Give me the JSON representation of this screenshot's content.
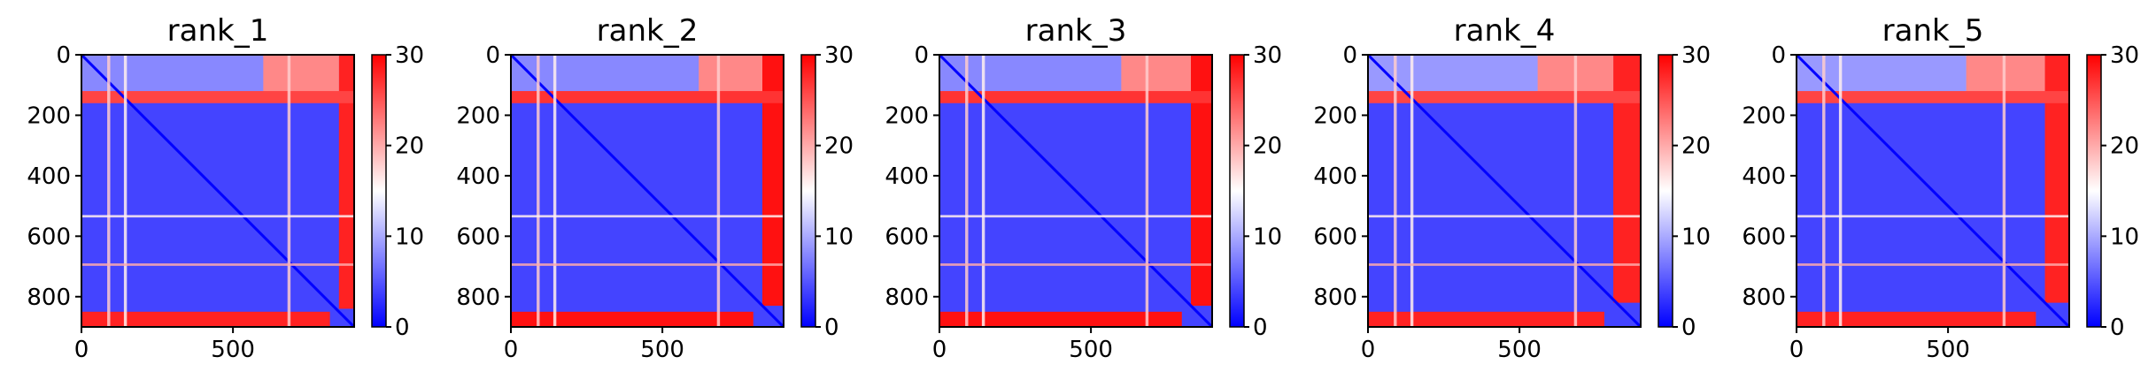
{
  "chart_data": [
    {
      "type": "heatmap",
      "title": "rank_1",
      "x_ticks": [
        "0",
        "500"
      ],
      "y_ticks": [
        "0",
        "200",
        "400",
        "600",
        "800"
      ],
      "colorbar_ticks": [
        "0",
        "10",
        "20",
        "30"
      ],
      "colormap": "bwr",
      "color_range": [
        0,
        30
      ],
      "x_range": [
        0,
        900
      ],
      "y_range": [
        900,
        0
      ],
      "blocks": [
        {
          "x0": 0,
          "x1": 850,
          "y0": 150,
          "y1": 850,
          "value": 4
        },
        {
          "x0": 0,
          "x1": 850,
          "y0": 0,
          "y1": 150,
          "value": 8
        },
        {
          "x0": 600,
          "x1": 850,
          "y0": 0,
          "y1": 150,
          "value": 22
        },
        {
          "x0": 850,
          "x1": 900,
          "y0": 0,
          "y1": 900,
          "value": 28
        },
        {
          "x0": 0,
          "x1": 900,
          "y0": 850,
          "y1": 900,
          "value": 28
        },
        {
          "x0": 0,
          "x1": 900,
          "y0": 120,
          "y1": 160,
          "value": 26
        },
        {
          "x0": 820,
          "x1": 900,
          "y0": 840,
          "y1": 900,
          "value": 4
        }
      ],
      "bands": [
        {
          "orient": "v",
          "pos": 85,
          "width": 10,
          "value": 18
        },
        {
          "orient": "v",
          "pos": 140,
          "width": 10,
          "value": 16
        },
        {
          "orient": "v",
          "pos": 680,
          "width": 10,
          "value": 18
        },
        {
          "orient": "h",
          "pos": 530,
          "width": 8,
          "value": 16
        },
        {
          "orient": "h",
          "pos": 690,
          "width": 8,
          "value": 20
        }
      ]
    },
    {
      "type": "heatmap",
      "title": "rank_2",
      "x_ticks": [
        "0",
        "500"
      ],
      "y_ticks": [
        "0",
        "200",
        "400",
        "600",
        "800"
      ],
      "colorbar_ticks": [
        "0",
        "10",
        "20",
        "30"
      ],
      "colormap": "bwr",
      "color_range": [
        0,
        30
      ],
      "x_range": [
        0,
        900
      ],
      "y_range": [
        900,
        0
      ],
      "blocks": [
        {
          "x0": 0,
          "x1": 830,
          "y0": 150,
          "y1": 850,
          "value": 4
        },
        {
          "x0": 0,
          "x1": 830,
          "y0": 0,
          "y1": 150,
          "value": 8
        },
        {
          "x0": 620,
          "x1": 830,
          "y0": 0,
          "y1": 150,
          "value": 22
        },
        {
          "x0": 830,
          "x1": 900,
          "y0": 0,
          "y1": 900,
          "value": 29
        },
        {
          "x0": 0,
          "x1": 900,
          "y0": 850,
          "y1": 900,
          "value": 29
        },
        {
          "x0": 0,
          "x1": 900,
          "y0": 120,
          "y1": 160,
          "value": 27
        },
        {
          "x0": 800,
          "x1": 900,
          "y0": 830,
          "y1": 900,
          "value": 4
        }
      ],
      "bands": [
        {
          "orient": "v",
          "pos": 85,
          "width": 10,
          "value": 18
        },
        {
          "orient": "v",
          "pos": 140,
          "width": 10,
          "value": 16
        },
        {
          "orient": "v",
          "pos": 680,
          "width": 10,
          "value": 18
        },
        {
          "orient": "h",
          "pos": 530,
          "width": 8,
          "value": 16
        },
        {
          "orient": "h",
          "pos": 690,
          "width": 8,
          "value": 20
        }
      ]
    },
    {
      "type": "heatmap",
      "title": "rank_3",
      "x_ticks": [
        "0",
        "500"
      ],
      "y_ticks": [
        "0",
        "200",
        "400",
        "600",
        "800"
      ],
      "colorbar_ticks": [
        "0",
        "10",
        "20",
        "30"
      ],
      "colormap": "bwr",
      "color_range": [
        0,
        30
      ],
      "x_range": [
        0,
        900
      ],
      "y_range": [
        900,
        0
      ],
      "blocks": [
        {
          "x0": 0,
          "x1": 830,
          "y0": 150,
          "y1": 850,
          "value": 4
        },
        {
          "x0": 0,
          "x1": 830,
          "y0": 0,
          "y1": 150,
          "value": 8
        },
        {
          "x0": 600,
          "x1": 830,
          "y0": 0,
          "y1": 150,
          "value": 22
        },
        {
          "x0": 830,
          "x1": 900,
          "y0": 0,
          "y1": 900,
          "value": 29
        },
        {
          "x0": 0,
          "x1": 900,
          "y0": 850,
          "y1": 900,
          "value": 29
        },
        {
          "x0": 0,
          "x1": 900,
          "y0": 120,
          "y1": 160,
          "value": 27
        },
        {
          "x0": 800,
          "x1": 900,
          "y0": 830,
          "y1": 900,
          "value": 4
        }
      ],
      "bands": [
        {
          "orient": "v",
          "pos": 85,
          "width": 10,
          "value": 18
        },
        {
          "orient": "v",
          "pos": 140,
          "width": 10,
          "value": 16
        },
        {
          "orient": "v",
          "pos": 680,
          "width": 10,
          "value": 18
        },
        {
          "orient": "h",
          "pos": 530,
          "width": 8,
          "value": 16
        },
        {
          "orient": "h",
          "pos": 690,
          "width": 8,
          "value": 20
        }
      ]
    },
    {
      "type": "heatmap",
      "title": "rank_4",
      "x_ticks": [
        "0",
        "500"
      ],
      "y_ticks": [
        "0",
        "200",
        "400",
        "600",
        "800"
      ],
      "colorbar_ticks": [
        "0",
        "10",
        "20",
        "30"
      ],
      "colormap": "bwr",
      "color_range": [
        0,
        30
      ],
      "x_range": [
        0,
        900
      ],
      "y_range": [
        900,
        0
      ],
      "blocks": [
        {
          "x0": 0,
          "x1": 810,
          "y0": 150,
          "y1": 850,
          "value": 4
        },
        {
          "x0": 0,
          "x1": 810,
          "y0": 0,
          "y1": 150,
          "value": 9
        },
        {
          "x0": 560,
          "x1": 810,
          "y0": 0,
          "y1": 150,
          "value": 22
        },
        {
          "x0": 810,
          "x1": 900,
          "y0": 0,
          "y1": 900,
          "value": 28
        },
        {
          "x0": 0,
          "x1": 900,
          "y0": 850,
          "y1": 900,
          "value": 28
        },
        {
          "x0": 0,
          "x1": 900,
          "y0": 120,
          "y1": 160,
          "value": 26
        },
        {
          "x0": 780,
          "x1": 900,
          "y0": 820,
          "y1": 900,
          "value": 4
        }
      ],
      "bands": [
        {
          "orient": "v",
          "pos": 85,
          "width": 10,
          "value": 18
        },
        {
          "orient": "v",
          "pos": 140,
          "width": 10,
          "value": 16
        },
        {
          "orient": "v",
          "pos": 680,
          "width": 10,
          "value": 18
        },
        {
          "orient": "h",
          "pos": 530,
          "width": 8,
          "value": 16
        },
        {
          "orient": "h",
          "pos": 690,
          "width": 8,
          "value": 20
        }
      ]
    },
    {
      "type": "heatmap",
      "title": "rank_5",
      "x_ticks": [
        "0",
        "500"
      ],
      "y_ticks": [
        "0",
        "200",
        "400",
        "600",
        "800"
      ],
      "colorbar_ticks": [
        "0",
        "10",
        "20",
        "30"
      ],
      "colormap": "bwr",
      "color_range": [
        0,
        30
      ],
      "x_range": [
        0,
        900
      ],
      "y_range": [
        900,
        0
      ],
      "blocks": [
        {
          "x0": 0,
          "x1": 820,
          "y0": 150,
          "y1": 850,
          "value": 4
        },
        {
          "x0": 0,
          "x1": 820,
          "y0": 0,
          "y1": 150,
          "value": 9
        },
        {
          "x0": 560,
          "x1": 820,
          "y0": 0,
          "y1": 150,
          "value": 22
        },
        {
          "x0": 820,
          "x1": 900,
          "y0": 0,
          "y1": 900,
          "value": 28
        },
        {
          "x0": 0,
          "x1": 900,
          "y0": 850,
          "y1": 900,
          "value": 28
        },
        {
          "x0": 0,
          "x1": 900,
          "y0": 120,
          "y1": 160,
          "value": 26
        },
        {
          "x0": 790,
          "x1": 900,
          "y0": 820,
          "y1": 900,
          "value": 4
        }
      ],
      "bands": [
        {
          "orient": "v",
          "pos": 85,
          "width": 10,
          "value": 18
        },
        {
          "orient": "v",
          "pos": 140,
          "width": 10,
          "value": 16
        },
        {
          "orient": "v",
          "pos": 680,
          "width": 10,
          "value": 18
        },
        {
          "orient": "h",
          "pos": 530,
          "width": 8,
          "value": 16
        },
        {
          "orient": "h",
          "pos": 690,
          "width": 8,
          "value": 20
        }
      ]
    }
  ]
}
